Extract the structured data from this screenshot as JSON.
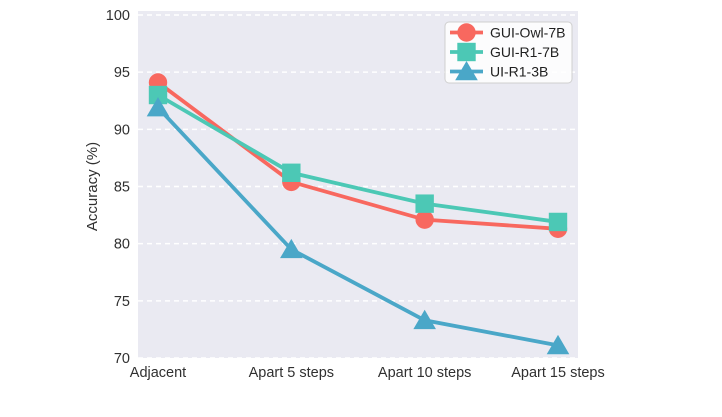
{
  "chart_data": {
    "type": "line",
    "title": "",
    "xlabel": "",
    "ylabel": "Accuracy (%)",
    "categories": [
      "Adjacent",
      "Apart 5 steps",
      "Apart 10 steps",
      "Apart 15 steps"
    ],
    "series": [
      {
        "name": "GUI-Owl-7B",
        "marker": "circle",
        "color": "#F8685F",
        "values": [
          94.1,
          85.4,
          82.1,
          81.3
        ]
      },
      {
        "name": "GUI-R1-7B",
        "marker": "square",
        "color": "#4CC8B5",
        "values": [
          93.0,
          86.2,
          83.5,
          81.9
        ]
      },
      {
        "name": "UI-R1-3B",
        "marker": "triangle",
        "color": "#4AA7C8",
        "values": [
          91.9,
          79.5,
          73.3,
          71.1
        ]
      }
    ],
    "ylim": [
      70,
      100
    ],
    "yticks": [
      70,
      75,
      80,
      85,
      90,
      95,
      100
    ],
    "grid": "horizontal-dashed-white",
    "legend_position": "upper-right",
    "plot_bg_color": "#EAEAF2",
    "figure_bg_color": "#FFFFFF",
    "gridline_color": "#FFFFFF",
    "tick_label_color": "#303030",
    "legend_text_color": "#1F1F1F",
    "legend_border_color": "#CFCFCF"
  }
}
